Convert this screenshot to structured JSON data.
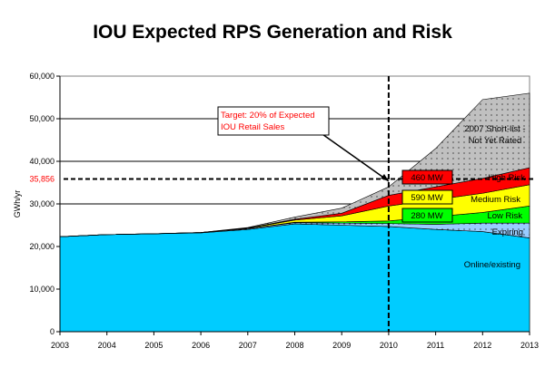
{
  "chart_data": {
    "type": "area",
    "stacked": true,
    "title": "IOU Expected RPS Generation and Risk",
    "xlabel": "",
    "ylabel": "GWh/yr",
    "x": [
      2003,
      2004,
      2005,
      2006,
      2007,
      2008,
      2009,
      2010,
      2011,
      2012,
      2013
    ],
    "ylim": [
      0,
      60000
    ],
    "yticks": [
      0,
      10000,
      20000,
      30000,
      40000,
      50000,
      60000
    ],
    "ytick_labels": [
      "0",
      "10,000",
      "20,000",
      "30,000",
      "40,000",
      "50,000",
      "60,000"
    ],
    "xtick_labels": [
      "2003",
      "2004",
      "2005",
      "2006",
      "2007",
      "2008",
      "2009",
      "2010",
      "2011",
      "2012",
      "2013"
    ],
    "grid": "horizontal",
    "series": [
      {
        "name": "Online/existing",
        "color": "#00ccff",
        "values": [
          22300,
          22800,
          23000,
          23200,
          24000,
          25300,
          25000,
          24700,
          24000,
          23500,
          22000
        ]
      },
      {
        "name": "Expiring",
        "color": "#99ccff",
        "values": [
          0,
          0,
          0,
          100,
          200,
          300,
          500,
          700,
          1200,
          2000,
          3500
        ]
      },
      {
        "name": "Low Risk",
        "color": "#00ff00",
        "values": [
          0,
          0,
          0,
          0,
          0,
          100,
          300,
          600,
          1800,
          2500,
          4000
        ]
      },
      {
        "name": "Medium Risk",
        "color": "#ffff00",
        "values": [
          0,
          0,
          0,
          0,
          100,
          500,
          1400,
          3500,
          4000,
          4500,
          5000
        ]
      },
      {
        "name": "High Risk",
        "color": "#ff0000",
        "values": [
          0,
          0,
          0,
          0,
          50,
          200,
          600,
          2500,
          3000,
          3500,
          4000
        ]
      },
      {
        "name": "2007 Short-list - Not Yet Rated",
        "color": "#c0c0c0",
        "values": [
          0,
          0,
          0,
          0,
          100,
          500,
          1200,
          2000,
          9000,
          18500,
          17500
        ]
      }
    ],
    "target": {
      "value": 35856,
      "label": "35,856",
      "color": "#ff0000"
    },
    "vertical_marker_year": 2010,
    "annotations": {
      "target_box": [
        "Target: 20% of Expected",
        "IOU Retail Sales"
      ],
      "series_labels": {
        "short_list": [
          "2007 Short-list -",
          "Not Yet Rated"
        ],
        "high": "High Risk",
        "medium": "Medium Risk",
        "low": "Low Risk",
        "expiring": "Expiring",
        "online": "Online/existing"
      },
      "mw_boxes": [
        {
          "label": "460 MW",
          "color": "#ff0000"
        },
        {
          "label": "590 MW",
          "color": "#ffff00"
        },
        {
          "label": "280 MW",
          "color": "#00ff00"
        }
      ]
    }
  }
}
